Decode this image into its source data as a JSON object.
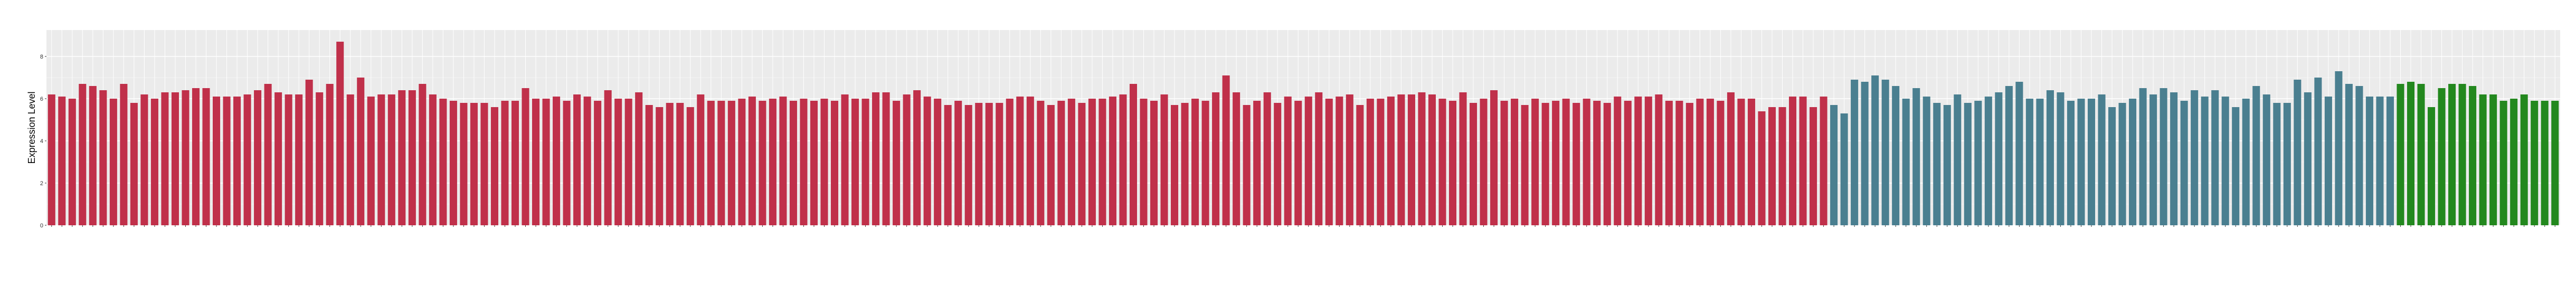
{
  "chart_data": {
    "type": "bar",
    "title": "",
    "xlabel": "",
    "ylabel": "Expression Level",
    "ylim": [
      0,
      9.25
    ],
    "yticks": [
      0,
      2,
      4,
      6,
      8
    ],
    "grid": true,
    "legend": "none",
    "categories_visible": false,
    "series_colors": [
      "#c0304a",
      "#4a7f90",
      "#23881e"
    ],
    "series": [
      {
        "name": "",
        "color": "#c0304a",
        "values": [
          6.2,
          6.1,
          6.0,
          6.7,
          6.6,
          6.4,
          6.0,
          6.7,
          5.8,
          6.2,
          6.0,
          6.3,
          6.3,
          6.4,
          6.5,
          6.5,
          6.1,
          6.1,
          6.1,
          6.2,
          6.4,
          6.7,
          6.3,
          6.2,
          6.2,
          6.9,
          6.3,
          6.7,
          8.7,
          6.2,
          7.0,
          6.1,
          6.2,
          6.2,
          6.4,
          6.4,
          6.7,
          6.2,
          6.0,
          5.9,
          5.8,
          5.8,
          5.8,
          5.6,
          5.9,
          5.9,
          6.5,
          6.0,
          6.0,
          6.1,
          5.9,
          6.2,
          6.1,
          5.9,
          6.4,
          6.0,
          6.0,
          6.3,
          5.7,
          5.6,
          5.8,
          5.8,
          5.6,
          6.2,
          5.9,
          5.9,
          5.9,
          6.0,
          6.1,
          5.9,
          6.0,
          6.1,
          5.9,
          6.0,
          5.9,
          6.0,
          5.9,
          6.2,
          6.0,
          6.0,
          6.3,
          6.3,
          5.9,
          6.2,
          6.4,
          6.1,
          6.0,
          5.7,
          5.9,
          5.7,
          5.8,
          5.8,
          5.8,
          6.0,
          6.1,
          6.1,
          5.9,
          5.7,
          5.9,
          6.0,
          5.8,
          6.0,
          6.0,
          6.1,
          6.2,
          6.7,
          6.0,
          5.9,
          6.2,
          5.7,
          5.8,
          6.0,
          5.9,
          6.3,
          7.1,
          6.3,
          5.7,
          5.9,
          6.3,
          5.8,
          6.1,
          5.9,
          6.1,
          6.3,
          6.0,
          6.1,
          6.2,
          5.7,
          6.0,
          6.0,
          6.1,
          6.2,
          6.2,
          6.3,
          6.2,
          6.0,
          5.9,
          6.3,
          5.8,
          6.0,
          6.4,
          5.9,
          6.0,
          5.7,
          6.0,
          5.8,
          5.9,
          6.0,
          5.8,
          6.0,
          5.9,
          5.8,
          6.1,
          5.9,
          6.1,
          6.1,
          6.2,
          5.9,
          5.9,
          5.8,
          6.0,
          6.0,
          5.9,
          6.3,
          6.0,
          6.0,
          5.4,
          5.6,
          5.6,
          6.1,
          6.1,
          5.6,
          6.1
        ]
      },
      {
        "name": "",
        "color": "#4a7f90",
        "values": [
          5.7,
          5.3,
          6.9,
          6.8,
          7.1,
          6.9,
          6.6,
          6.0,
          6.5,
          6.1,
          5.8,
          5.7,
          6.2,
          5.8,
          5.9,
          6.1,
          6.3,
          6.6,
          6.8,
          6.0,
          6.0,
          6.4,
          6.3,
          5.9,
          6.0,
          6.0,
          6.2,
          5.6,
          5.8,
          6.0,
          6.5,
          6.2,
          6.5,
          6.3,
          5.9,
          6.4,
          6.1,
          6.4,
          6.1,
          5.6,
          6.0,
          6.6,
          6.2,
          5.8,
          5.8,
          6.9,
          6.3,
          7.0,
          6.1,
          7.3,
          6.7,
          6.6,
          6.1,
          6.1,
          6.1
        ]
      },
      {
        "name": "",
        "color": "#23881e",
        "values": [
          6.7,
          6.8,
          6.7,
          5.6,
          6.5,
          6.7,
          6.7,
          6.6,
          6.2,
          6.2,
          5.9,
          6.0,
          6.2,
          5.9,
          5.9,
          5.9
        ]
      }
    ]
  }
}
